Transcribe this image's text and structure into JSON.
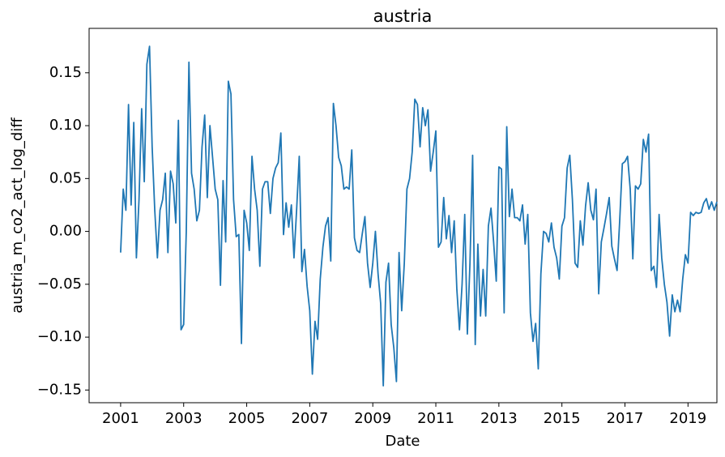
{
  "chart_data": {
    "type": "line",
    "title": "austria",
    "x_label": "Date",
    "y_label": "austria_m_co2_act_log_diff",
    "xlim": [
      2000.0,
      2019.917
    ],
    "ylim": [
      -0.162,
      0.192
    ],
    "xticks": [
      2001,
      2003,
      2005,
      2007,
      2009,
      2011,
      2013,
      2015,
      2017,
      2019
    ],
    "yticks": [
      {
        "value": -0.15,
        "label": "−0.15"
      },
      {
        "value": -0.1,
        "label": "−0.10"
      },
      {
        "value": -0.05,
        "label": "−0.05"
      },
      {
        "value": 0,
        "label": "0.00"
      },
      {
        "value": 0.05,
        "label": "0.05"
      },
      {
        "value": 0.1,
        "label": "0.10"
      },
      {
        "value": 0.15,
        "label": "0.15"
      }
    ],
    "grid": false,
    "series": [
      {
        "name": "austria_m_co2_act_log_diff",
        "color": "#1f77b4",
        "x": [
          2001,
          2001.083,
          2001.167,
          2001.25,
          2001.333,
          2001.417,
          2001.5,
          2001.583,
          2001.667,
          2001.75,
          2001.833,
          2001.917,
          2002,
          2002.083,
          2002.167,
          2002.25,
          2002.333,
          2002.417,
          2002.5,
          2002.583,
          2002.667,
          2002.75,
          2002.833,
          2002.917,
          2003,
          2003.083,
          2003.167,
          2003.25,
          2003.333,
          2003.417,
          2003.5,
          2003.583,
          2003.667,
          2003.75,
          2003.833,
          2003.917,
          2004,
          2004.083,
          2004.167,
          2004.25,
          2004.333,
          2004.417,
          2004.5,
          2004.583,
          2004.667,
          2004.75,
          2004.833,
          2004.917,
          2005,
          2005.083,
          2005.167,
          2005.25,
          2005.333,
          2005.417,
          2005.5,
          2005.583,
          2005.667,
          2005.75,
          2005.833,
          2005.917,
          2006,
          2006.083,
          2006.167,
          2006.25,
          2006.333,
          2006.417,
          2006.5,
          2006.583,
          2006.667,
          2006.75,
          2006.833,
          2006.917,
          2007,
          2007.083,
          2007.167,
          2007.25,
          2007.333,
          2007.417,
          2007.5,
          2007.583,
          2007.667,
          2007.75,
          2007.833,
          2007.917,
          2008,
          2008.083,
          2008.167,
          2008.25,
          2008.333,
          2008.417,
          2008.5,
          2008.583,
          2008.667,
          2008.75,
          2008.833,
          2008.917,
          2009,
          2009.083,
          2009.167,
          2009.25,
          2009.333,
          2009.417,
          2009.5,
          2009.583,
          2009.667,
          2009.75,
          2009.833,
          2009.917,
          2010,
          2010.083,
          2010.167,
          2010.25,
          2010.333,
          2010.417,
          2010.5,
          2010.583,
          2010.667,
          2010.75,
          2010.833,
          2010.917,
          2011,
          2011.083,
          2011.167,
          2011.25,
          2011.333,
          2011.417,
          2011.5,
          2011.583,
          2011.667,
          2011.75,
          2011.833,
          2011.917,
          2012,
          2012.083,
          2012.167,
          2012.25,
          2012.333,
          2012.417,
          2012.5,
          2012.583,
          2012.667,
          2012.75,
          2012.833,
          2012.917,
          2013,
          2013.083,
          2013.167,
          2013.25,
          2013.333,
          2013.417,
          2013.5,
          2013.583,
          2013.667,
          2013.75,
          2013.833,
          2013.917,
          2014,
          2014.083,
          2014.167,
          2014.25,
          2014.333,
          2014.417,
          2014.5,
          2014.583,
          2014.667,
          2014.75,
          2014.833,
          2014.917,
          2015,
          2015.083,
          2015.167,
          2015.25,
          2015.333,
          2015.417,
          2015.5,
          2015.583,
          2015.667,
          2015.75,
          2015.833,
          2015.917,
          2016,
          2016.083,
          2016.167,
          2016.25,
          2016.333,
          2016.417,
          2016.5,
          2016.583,
          2016.667,
          2016.75,
          2016.833,
          2016.917,
          2017,
          2017.083,
          2017.167,
          2017.25,
          2017.333,
          2017.417,
          2017.5,
          2017.583,
          2017.667,
          2017.75,
          2017.833,
          2017.917,
          2018,
          2018.083,
          2018.167,
          2018.25,
          2018.333,
          2018.417,
          2018.5,
          2018.583,
          2018.667,
          2018.75,
          2018.833,
          2018.917,
          2019,
          2019.083,
          2019.167,
          2019.25,
          2019.333,
          2019.417,
          2019.5,
          2019.583,
          2019.667,
          2019.75,
          2019.833,
          2019.917
        ],
        "values": [
          -0.02,
          0.04,
          0.02,
          0.12,
          0.025,
          0.103,
          -0.025,
          0.03,
          0.116,
          0.047,
          0.158,
          0.175,
          0.08,
          0.02,
          -0.025,
          0.02,
          0.03,
          0.055,
          -0.02,
          0.057,
          0.045,
          0.008,
          0.105,
          -0.093,
          -0.088,
          0.0,
          0.16,
          0.055,
          0.04,
          0.01,
          0.02,
          0.08,
          0.11,
          0.032,
          0.1,
          0.07,
          0.04,
          0.03,
          -0.051,
          0.048,
          -0.01,
          0.142,
          0.13,
          0.03,
          -0.005,
          -0.003,
          -0.106,
          0.02,
          0.008,
          -0.018,
          0.071,
          0.04,
          0.02,
          -0.033,
          0.04,
          0.047,
          0.047,
          0.017,
          0.05,
          0.06,
          0.065,
          0.093,
          -0.003,
          0.027,
          0.004,
          0.025,
          -0.025,
          0.02,
          0.071,
          -0.038,
          -0.017,
          -0.052,
          -0.075,
          -0.135,
          -0.085,
          -0.102,
          -0.045,
          -0.015,
          0.005,
          0.013,
          -0.028,
          0.121,
          0.1,
          0.07,
          0.062,
          0.04,
          0.042,
          0.04,
          0.077,
          -0.006,
          -0.018,
          -0.02,
          -0.002,
          0.014,
          -0.03,
          -0.053,
          -0.03,
          0.0,
          -0.04,
          -0.068,
          -0.146,
          -0.048,
          -0.03,
          -0.088,
          -0.11,
          -0.142,
          -0.02,
          -0.075,
          -0.03,
          0.04,
          0.05,
          0.075,
          0.125,
          0.12,
          0.08,
          0.117,
          0.1,
          0.115,
          0.057,
          0.075,
          0.095,
          -0.015,
          -0.01,
          0.032,
          -0.007,
          0.015,
          -0.02,
          0.01,
          -0.055,
          -0.093,
          -0.05,
          0.016,
          -0.097,
          -0.03,
          0.072,
          -0.107,
          -0.012,
          -0.08,
          -0.036,
          -0.08,
          0.005,
          0.022,
          -0.01,
          -0.047,
          0.061,
          0.059,
          -0.077,
          0.099,
          0.014,
          0.04,
          0.013,
          0.013,
          0.01,
          0.025,
          -0.012,
          0.016,
          -0.077,
          -0.104,
          -0.087,
          -0.13,
          -0.04,
          0.0,
          -0.002,
          -0.01,
          0.008,
          -0.015,
          -0.025,
          -0.045,
          0.005,
          0.013,
          0.06,
          0.072,
          0.03,
          -0.03,
          -0.034,
          0.01,
          -0.013,
          0.024,
          0.046,
          0.02,
          0.011,
          0.04,
          -0.059,
          -0.01,
          0.003,
          0.017,
          0.032,
          -0.014,
          -0.026,
          -0.037,
          0.01,
          0.064,
          0.066,
          0.071,
          0.04,
          -0.026,
          0.043,
          0.04,
          0.045,
          0.087,
          0.075,
          0.092,
          -0.037,
          -0.033,
          -0.053,
          0.016,
          -0.025,
          -0.05,
          -0.067,
          -0.099,
          -0.06,
          -0.076,
          -0.065,
          -0.076,
          -0.045,
          -0.022,
          -0.03,
          0.018,
          0.015,
          0.018,
          0.017,
          0.018,
          0.027,
          0.031,
          0.021,
          0.028,
          0.02,
          0.028
        ]
      }
    ]
  }
}
